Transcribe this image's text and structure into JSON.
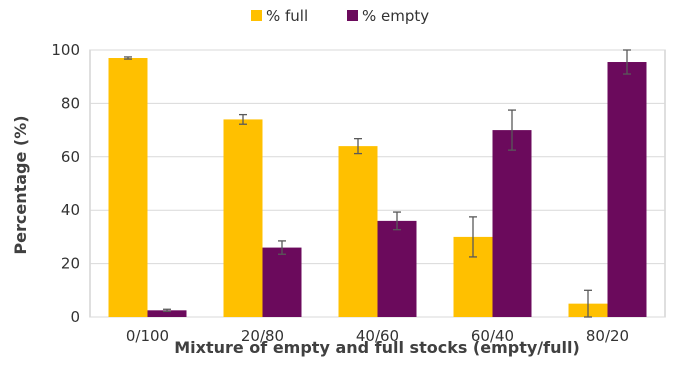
{
  "chart_data": {
    "type": "bar",
    "categories": [
      "0/100",
      "20/80",
      "40/60",
      "60/40",
      "80/20"
    ],
    "series": [
      {
        "name": "% full",
        "values": [
          97,
          74,
          64,
          30,
          5
        ],
        "errors": [
          0.4,
          1.8,
          2.8,
          7.5,
          5
        ],
        "color": "#FFC000"
      },
      {
        "name": "% empty",
        "values": [
          2.5,
          26,
          36,
          70,
          95.5
        ],
        "errors": [
          0.4,
          2.5,
          3.3,
          7.5,
          4.5
        ],
        "color": "#6B0A5C"
      }
    ],
    "xlabel": "Mixture of empty and full stocks (empty/full)",
    "ylabel": "Percentage (%)",
    "ylim": [
      0,
      100
    ],
    "yticks": [
      0,
      20,
      40,
      60,
      80,
      100
    ],
    "grid": true,
    "legend": "top-center",
    "colors": {
      "grid": "#D9D9D9",
      "axis": "#BFBFBF",
      "error_bar": "#595959"
    }
  }
}
